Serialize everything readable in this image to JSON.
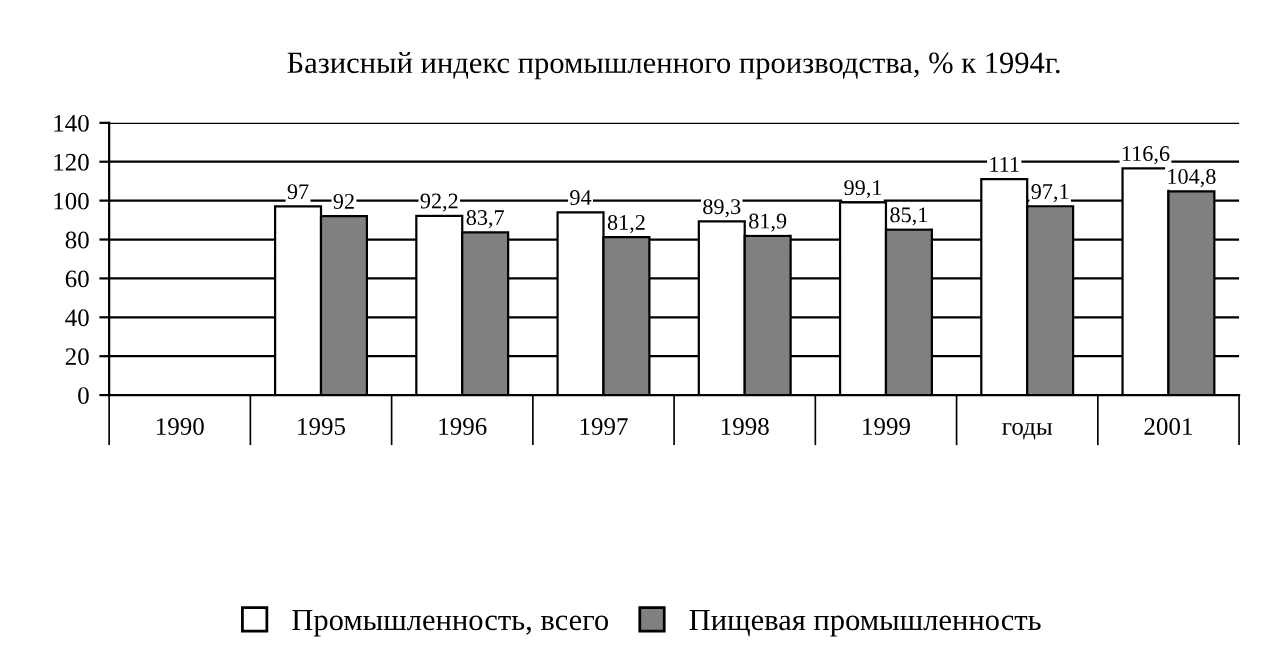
{
  "chart_data": {
    "type": "bar",
    "title": "Базисный индекс промышленного производства, % к 1994г.",
    "categories": [
      "1990",
      "1995",
      "1996",
      "1997",
      "1998",
      "1999",
      "годы",
      "2001"
    ],
    "series": [
      {
        "name": "Промышленность, всего",
        "color": "#ffffff",
        "values": [
          null,
          97,
          92.2,
          94,
          89.3,
          99.1,
          111,
          116.6
        ],
        "value_labels": [
          null,
          "97",
          "92,2",
          "94",
          "89,3",
          "99,1",
          "111",
          "116,6"
        ]
      },
      {
        "name": "Пищевая промышленность",
        "color": "#808080",
        "values": [
          null,
          92,
          83.7,
          81.2,
          81.9,
          85.1,
          97.1,
          104.8
        ],
        "value_labels": [
          null,
          "92",
          "83,7",
          "81,2",
          "81,9",
          "85,1",
          "97,1",
          "104,8"
        ]
      }
    ],
    "ylim": [
      0,
      140
    ],
    "yticks": [
      0,
      20,
      40,
      60,
      80,
      100,
      120,
      140
    ],
    "grid": "y",
    "legend": "bottom"
  }
}
